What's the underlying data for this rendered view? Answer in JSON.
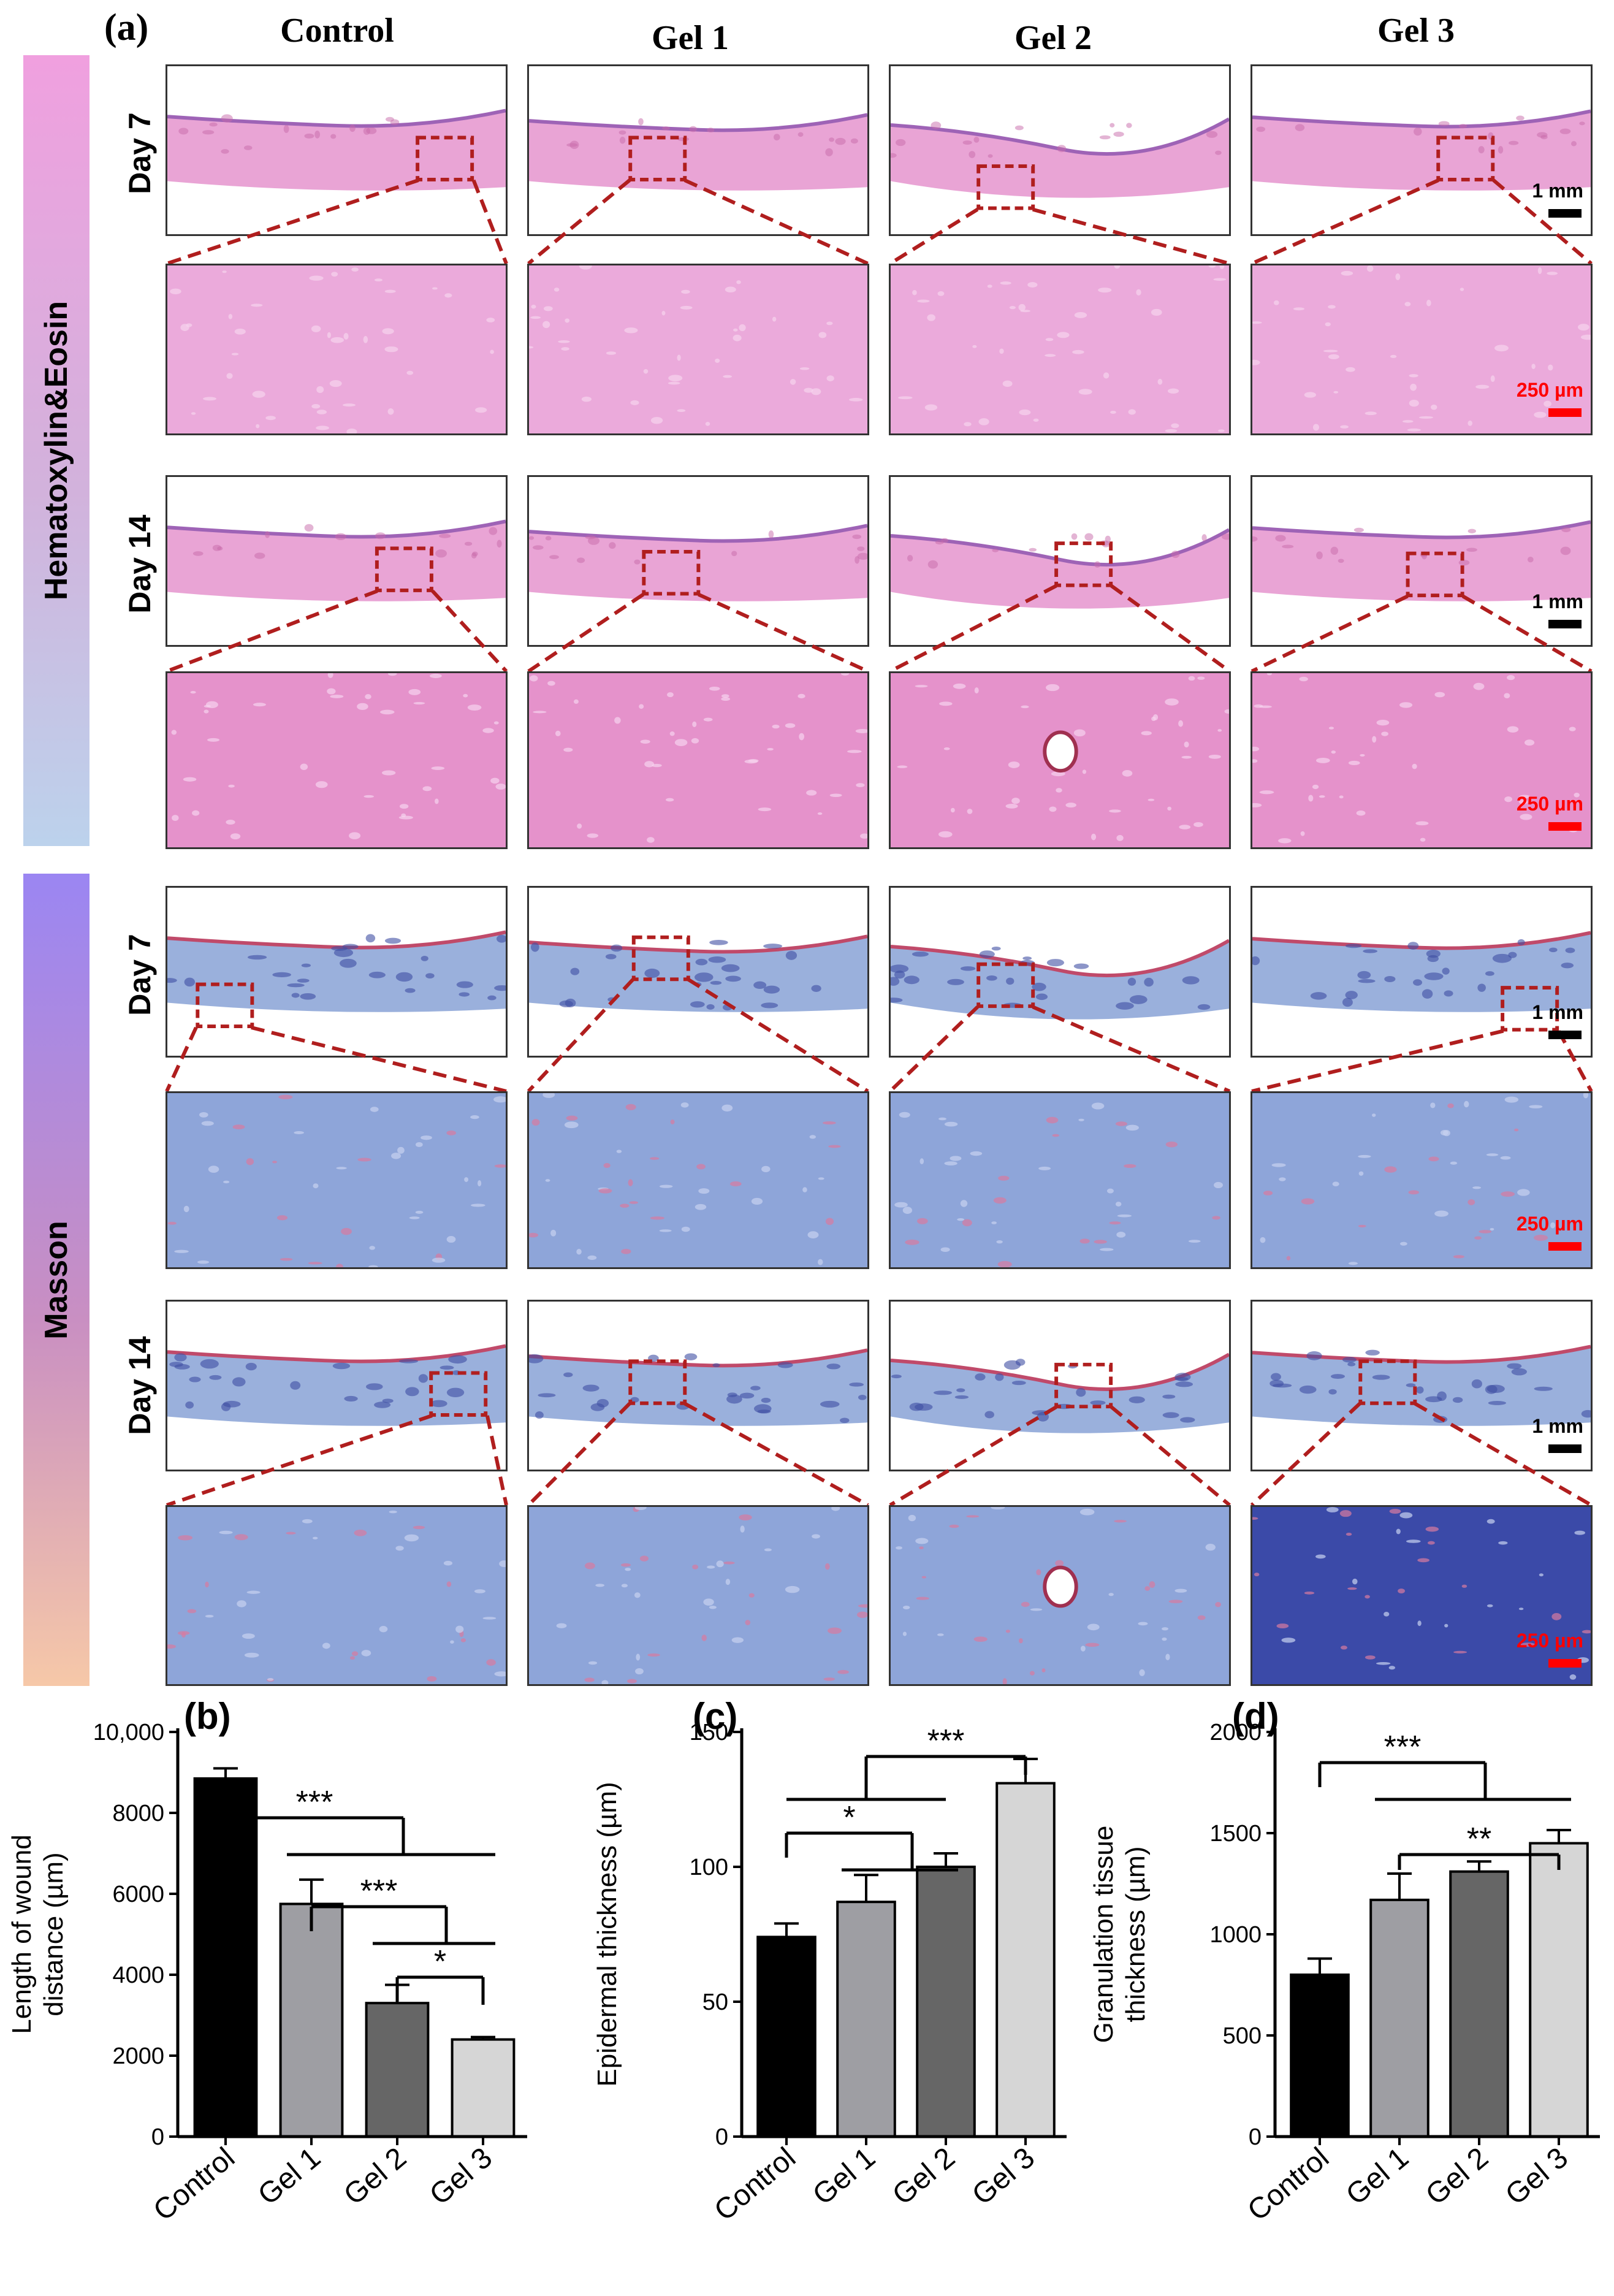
{
  "panel_a": {
    "label": "(a)",
    "columns": [
      "Control",
      "Gel 1",
      "Gel 2",
      "Gel 3"
    ],
    "sections": [
      {
        "name": "Hematoxylin&Eosin",
        "rows": [
          "Day 7",
          "Day 14"
        ]
      },
      {
        "name": "Masson",
        "rows": [
          "Day 7",
          "Day 14"
        ]
      }
    ],
    "scale_low": "1 mm",
    "scale_high": "250 µm",
    "colors": {
      "he_bg": "#e8a3d4",
      "masson_bg": "#7f8fcf",
      "zoom_box": "#b01e1e",
      "scale_red": "#ff0000"
    }
  },
  "chart_data": [
    {
      "panel": "(b)",
      "type": "bar",
      "categories": [
        "Control",
        "Gel 1",
        "Gel 2",
        "Gel 3"
      ],
      "values": [
        8850,
        5750,
        3300,
        2400
      ],
      "errors": [
        250,
        600,
        450,
        60
      ],
      "ylabel": "Length of wound distance (µm)",
      "ylim": [
        0,
        10000
      ],
      "yticks": [
        "0",
        "2000",
        "4000",
        "6000",
        "8000",
        "10,000"
      ],
      "significance": [
        "***",
        "***",
        "*"
      ],
      "colors": [
        "#000000",
        "#9e9ea3",
        "#666666",
        "#d6d6d6"
      ]
    },
    {
      "panel": "(c)",
      "type": "bar",
      "categories": [
        "Control",
        "Gel 1",
        "Gel 2",
        "Gel 3"
      ],
      "values": [
        74,
        87,
        100,
        131
      ],
      "errors": [
        5,
        10,
        5,
        9
      ],
      "ylabel": "Epidermal thickness (µm)",
      "ylim": [
        0,
        150
      ],
      "yticks": [
        "0",
        "50",
        "100",
        "150"
      ],
      "significance": [
        "***",
        "*"
      ],
      "colors": [
        "#000000",
        "#9e9ea3",
        "#666666",
        "#d6d6d6"
      ]
    },
    {
      "panel": "(d)",
      "type": "bar",
      "categories": [
        "Control",
        "Gel 1",
        "Gel 2",
        "Gel 3"
      ],
      "values": [
        800,
        1170,
        1310,
        1450
      ],
      "errors": [
        80,
        130,
        50,
        65
      ],
      "ylabel": "Granulation tissue thickness (µm)",
      "ylim": [
        0,
        2000
      ],
      "yticks": [
        "0",
        "500",
        "1000",
        "1500",
        "2000"
      ],
      "significance": [
        "***",
        "**"
      ],
      "colors": [
        "#000000",
        "#9e9ea3",
        "#666666",
        "#d6d6d6"
      ]
    }
  ]
}
